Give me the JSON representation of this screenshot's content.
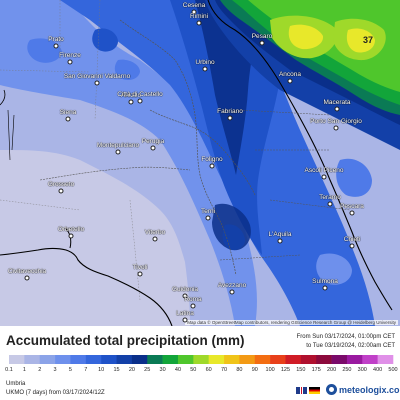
{
  "map": {
    "cities": [
      {
        "name": "Cesena"
      },
      {
        "name": "Rimini"
      },
      {
        "name": "Pesaro"
      },
      {
        "name": "Prato"
      },
      {
        "name": "Firenze"
      },
      {
        "name": "San Giovanni Valdarno"
      },
      {
        "name": "Urbino"
      },
      {
        "name": "Ancona"
      },
      {
        "name": "Arezzo"
      },
      {
        "name": "Città di Castello"
      },
      {
        "name": "Macerata"
      },
      {
        "name": "Fabriano"
      },
      {
        "name": "Porto San Giorgio"
      },
      {
        "name": "Siena"
      },
      {
        "name": "Montepulciano"
      },
      {
        "name": "Perugia"
      },
      {
        "name": "Foligno"
      },
      {
        "name": "Ascoli Piceno"
      },
      {
        "name": "Teramo"
      },
      {
        "name": "Grosseto"
      },
      {
        "name": "Terni"
      },
      {
        "name": "Pescara"
      },
      {
        "name": "Orbetello"
      },
      {
        "name": "Viterbo"
      },
      {
        "name": "L'Aquila"
      },
      {
        "name": "Chieti"
      },
      {
        "name": "Civitavecchia"
      },
      {
        "name": "Tivoli"
      },
      {
        "name": "Guidonia"
      },
      {
        "name": "Avezzano"
      },
      {
        "name": "Sulmona"
      },
      {
        "name": "Roma"
      },
      {
        "name": "Latina"
      }
    ],
    "max_value": "37",
    "attribution": "Map data © OpenStreetMap contributors, rendering GIScience Research Group @ Heidelberg University"
  },
  "legend": {
    "title": "Accumulated total precipitation (mm)",
    "period_from": "From Sun 03/17/2024, 01:00pm CET",
    "period_to": "to Tue 03/19/2024, 02:00am CET",
    "ticks": [
      "0.1",
      "1",
      "2",
      "3",
      "5",
      "7",
      "10",
      "15",
      "20",
      "25",
      "30",
      "40",
      "50",
      "60",
      "70",
      "80",
      "90",
      "100",
      "125",
      "150",
      "175",
      "200",
      "250",
      "300",
      "400",
      "500"
    ],
    "colors": [
      "#c7c9e6",
      "#aab5e6",
      "#8ba3e8",
      "#6e90ec",
      "#4f7ae8",
      "#3466dc",
      "#1f52c8",
      "#1340a8",
      "#0a2f8a",
      "#0a7a55",
      "#12a53a",
      "#4fc62c",
      "#9fd92a",
      "#e8e82a",
      "#f0c419",
      "#f39a14",
      "#f36d12",
      "#e8401a",
      "#d01c26",
      "#b0102e",
      "#8c0a3c",
      "#7a0a6a",
      "#9a1aa0",
      "#c040c8",
      "#e090e8"
    ]
  },
  "footer": {
    "region": "Umbria",
    "model": "UKMO (7 days) from 03/17/2024/12Z",
    "brand": "meteologix.com"
  }
}
